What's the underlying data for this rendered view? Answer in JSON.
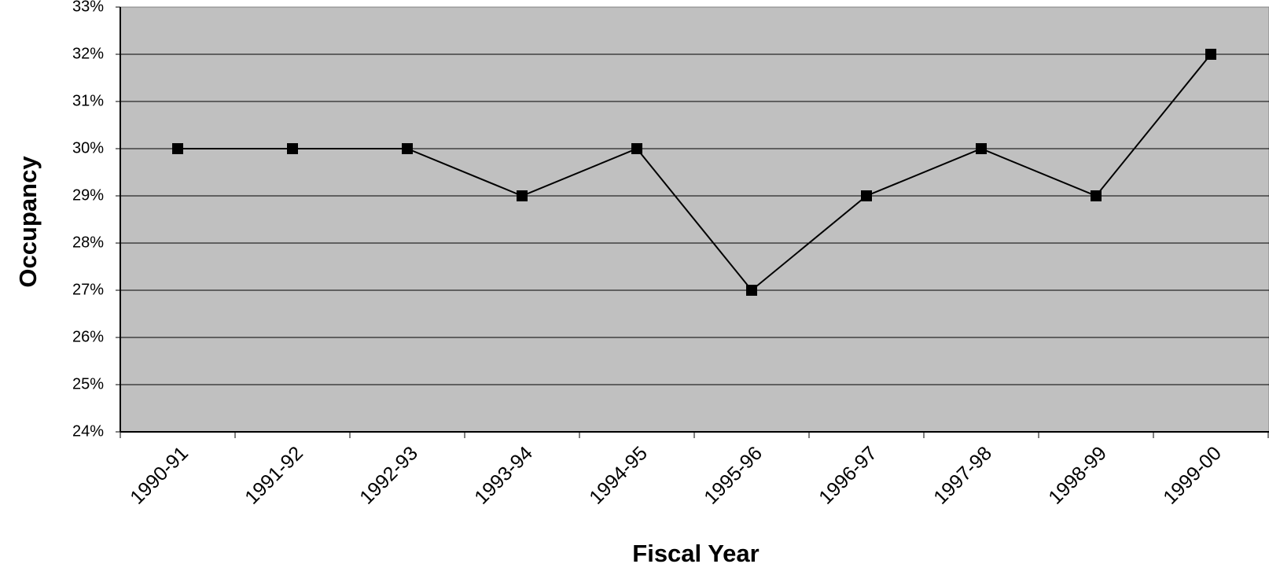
{
  "chart_data": {
    "type": "line",
    "title": "",
    "xlabel": "Fiscal Year",
    "ylabel": "Occupancy",
    "categories": [
      "1990-91",
      "1991-92",
      "1992-93",
      "1993-94",
      "1994-95",
      "1995-96",
      "1996-97",
      "1997-98",
      "1998-99",
      "1999-00"
    ],
    "series": [
      {
        "values": [
          30,
          30,
          30,
          29,
          30,
          27,
          29,
          30,
          29,
          32
        ],
        "marker": "square",
        "color": "#000000"
      }
    ],
    "ylim": [
      24,
      33
    ],
    "y_ticks": [
      "24%",
      "25%",
      "26%",
      "27%",
      "28%",
      "29%",
      "30%",
      "31%",
      "32%",
      "33%"
    ],
    "y_unit": "%",
    "grid": true,
    "legend": "none",
    "plot_background": "#c0c0c0",
    "gridline_color": "#000000"
  }
}
